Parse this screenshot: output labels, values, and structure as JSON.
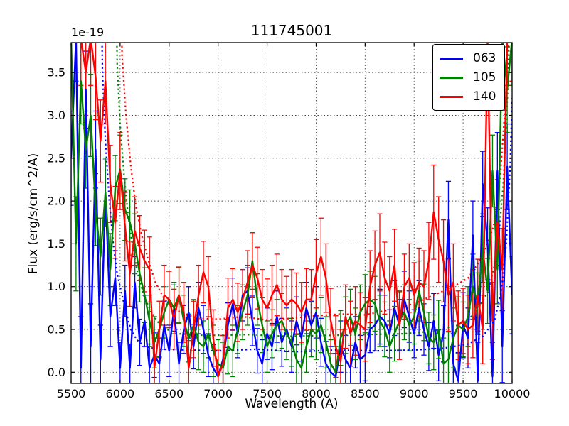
{
  "figure": {
    "title": "111745001",
    "offset_text": "1e-19",
    "background": "#ffffff"
  },
  "axes": {
    "xlabel": "Wavelength (A)",
    "ylabel": "Flux (erg/s/cm^2/A)"
  },
  "legend": {
    "position": "upper right",
    "entries": [
      {
        "label": "063",
        "color": "#0000ff"
      },
      {
        "label": "105",
        "color": "#008000"
      },
      {
        "label": "140",
        "color": "#ff0000"
      }
    ]
  },
  "chart_data": {
    "type": "line",
    "title": "111745001",
    "xlabel": "Wavelength (A)",
    "ylabel": "Flux (erg/s/cm^2/A)",
    "y_offset_factor": "1e-19",
    "xlim": [
      5500,
      10000
    ],
    "ylim": [
      -0.13,
      3.85
    ],
    "xticks": [
      5500,
      6000,
      6500,
      7000,
      7500,
      8000,
      8500,
      9000,
      9500,
      10000
    ],
    "xtick_labels": [
      "5500",
      "6000",
      "6500",
      "7000",
      "7500",
      "8000",
      "8500",
      "9000",
      "9500",
      "10000"
    ],
    "yticks": [
      0.0,
      0.5,
      1.0,
      1.5,
      2.0,
      2.5,
      3.0,
      3.5
    ],
    "ytick_labels": [
      "0.0",
      "0.5",
      "1.0",
      "1.5",
      "2.0",
      "2.5",
      "3.0",
      "3.5"
    ],
    "grid": true,
    "grid_style": "dotted",
    "legend_position": "upper right",
    "x_start": 5500,
    "x_step": 50,
    "series": [
      {
        "name": "063",
        "color": "#0000ff",
        "style": "solid",
        "values": [
          2.5,
          3.9,
          0.05,
          3.3,
          0.3,
          2.6,
          0.15,
          2.1,
          0.65,
          1.1,
          0.05,
          0.95,
          0.05,
          1.05,
          0.35,
          0.6,
          0.05,
          0.2,
          0.1,
          0.55,
          0.25,
          0.75,
          0.1,
          0.5,
          0.7,
          0.3,
          0.75,
          0.5,
          0.2,
          0.05,
          -0.05,
          0.15,
          0.55,
          0.8,
          0.45,
          0.9,
          0.95,
          0.6,
          0.25,
          0.1,
          0.45,
          0.3,
          0.65,
          0.35,
          0.5,
          0.3,
          0.6,
          0.4,
          0.75,
          0.55,
          0.7,
          0.35,
          0.1,
          0.0,
          -0.05,
          0.3,
          0.15,
          0.05,
          0.35,
          0.15,
          0.2,
          0.5,
          0.55,
          0.65,
          0.6,
          0.45,
          0.75,
          0.55,
          0.85,
          0.65,
          0.45,
          0.75,
          0.5,
          0.3,
          0.6,
          0.2,
          0.45,
          1.78,
          0.1,
          -0.1,
          0.55,
          0.4,
          1.6,
          -0.1,
          2.2,
          1.5,
          -0.05,
          2.35,
          0.3,
          2.4,
          0.9
        ],
        "errors": [
          0.55,
          0.5,
          0.6,
          0.45,
          0.5,
          0.45,
          0.4,
          0.38,
          0.35,
          0.32,
          0.3,
          0.3,
          0.28,
          0.3,
          0.27,
          0.3,
          0.28,
          0.26,
          0.3,
          0.28,
          0.3,
          0.27,
          0.25,
          0.28,
          0.3,
          0.26,
          0.3,
          0.28,
          0.25,
          0.27,
          0.3,
          0.28,
          0.26,
          0.3,
          0.28,
          0.3,
          0.27,
          0.29,
          0.26,
          0.28,
          0.3,
          0.27,
          0.3,
          0.28,
          0.26,
          0.3,
          0.28,
          0.27,
          0.3,
          0.28,
          0.3,
          0.28,
          0.26,
          0.3,
          0.27,
          0.3,
          0.28,
          0.26,
          0.3,
          0.28,
          0.3,
          0.27,
          0.3,
          0.32,
          0.3,
          0.28,
          0.32,
          0.3,
          0.33,
          0.3,
          0.28,
          0.32,
          0.3,
          0.28,
          0.32,
          0.3,
          0.33,
          0.45,
          0.35,
          0.33,
          0.38,
          0.35,
          0.4,
          0.45,
          0.38,
          0.42,
          0.4,
          0.45,
          0.42,
          0.5,
          0.45
        ]
      },
      {
        "name": "105",
        "color": "#008000",
        "style": "solid",
        "values": [
          3.9,
          1.5,
          3.4,
          2.6,
          3.0,
          1.9,
          1.35,
          2.1,
          1.2,
          2.15,
          2.37,
          1.9,
          1.75,
          1.5,
          1.15,
          0.9,
          0.6,
          0.35,
          0.5,
          0.7,
          0.85,
          0.75,
          0.9,
          0.6,
          0.4,
          0.55,
          0.35,
          0.3,
          0.45,
          0.25,
          0.1,
          0.05,
          0.3,
          0.25,
          0.5,
          0.7,
          0.9,
          1.3,
          0.85,
          0.55,
          0.3,
          0.45,
          0.55,
          0.6,
          0.45,
          0.35,
          0.15,
          0.05,
          0.3,
          0.5,
          0.45,
          0.55,
          0.35,
          0.1,
          0.0,
          0.4,
          0.55,
          0.65,
          0.45,
          0.7,
          0.8,
          0.85,
          0.8,
          0.6,
          0.5,
          0.3,
          0.45,
          0.6,
          0.7,
          0.55,
          0.65,
          0.95,
          0.7,
          0.4,
          0.35,
          0.5,
          0.1,
          0.15,
          0.4,
          0.55,
          0.5,
          0.65,
          1.0,
          0.8,
          1.45,
          0.95,
          2.35,
          1.2,
          3.9,
          3.3,
          3.9
        ],
        "errors": [
          0.5,
          0.55,
          0.5,
          0.45,
          0.48,
          0.42,
          0.45,
          0.4,
          0.42,
          0.38,
          0.4,
          0.36,
          0.38,
          0.35,
          0.33,
          0.32,
          0.3,
          0.3,
          0.32,
          0.3,
          0.33,
          0.3,
          0.32,
          0.3,
          0.28,
          0.3,
          0.32,
          0.3,
          0.28,
          0.3,
          0.28,
          0.3,
          0.32,
          0.3,
          0.28,
          0.32,
          0.35,
          0.33,
          0.3,
          0.32,
          0.3,
          0.28,
          0.3,
          0.32,
          0.3,
          0.28,
          0.3,
          0.28,
          0.3,
          0.32,
          0.3,
          0.32,
          0.3,
          0.28,
          0.3,
          0.32,
          0.33,
          0.32,
          0.3,
          0.32,
          0.34,
          0.33,
          0.32,
          0.3,
          0.32,
          0.3,
          0.32,
          0.34,
          0.32,
          0.3,
          0.32,
          0.35,
          0.33,
          0.3,
          0.32,
          0.34,
          0.3,
          0.32,
          0.35,
          0.33,
          0.32,
          0.35,
          0.38,
          0.36,
          0.4,
          0.38,
          0.42,
          0.4,
          0.45,
          0.5,
          0.55
        ]
      },
      {
        "name": "140",
        "color": "#ff0000",
        "style": "solid",
        "values": [
          null,
          null,
          3.9,
          3.5,
          3.9,
          3.45,
          2.7,
          3.4,
          2.2,
          1.75,
          2.35,
          1.7,
          1.15,
          1.65,
          1.45,
          1.3,
          1.2,
          0.05,
          0.5,
          0.9,
          0.85,
          0.62,
          0.9,
          0.7,
          0.05,
          0.5,
          0.9,
          1.17,
          1.0,
          0.4,
          -0.05,
          0.1,
          0.75,
          0.85,
          0.7,
          0.85,
          1.05,
          1.25,
          1.1,
          0.85,
          0.75,
          0.9,
          1.02,
          0.85,
          0.78,
          0.85,
          0.8,
          0.7,
          0.85,
          0.85,
          1.15,
          1.35,
          1.1,
          0.6,
          0.3,
          0.12,
          0.65,
          0.45,
          0.6,
          0.55,
          0.5,
          1.0,
          1.25,
          1.4,
          1.1,
          0.95,
          1.25,
          0.55,
          1.0,
          1.1,
          0.9,
          1.05,
          1.0,
          1.3,
          1.87,
          1.55,
          1.3,
          0.9,
          1.05,
          0.55,
          0.6,
          0.5,
          0.55,
          0.9,
          0.5,
          3.9,
          0.6,
          1.75,
          1.2,
          3.9,
          3.9
        ],
        "errors": [
          null,
          null,
          0.55,
          0.5,
          0.55,
          0.5,
          0.48,
          0.5,
          0.45,
          0.42,
          0.45,
          0.4,
          0.38,
          0.4,
          0.38,
          0.36,
          0.38,
          0.35,
          0.33,
          0.35,
          0.33,
          0.35,
          0.33,
          0.35,
          0.32,
          0.33,
          0.35,
          0.36,
          0.35,
          0.33,
          0.32,
          0.33,
          0.35,
          0.36,
          0.34,
          0.35,
          0.37,
          0.38,
          0.36,
          0.35,
          0.34,
          0.35,
          0.36,
          0.35,
          0.34,
          0.35,
          0.36,
          0.35,
          0.36,
          0.35,
          0.4,
          0.45,
          0.4,
          0.38,
          0.36,
          0.38,
          0.37,
          0.38,
          0.4,
          0.38,
          0.37,
          0.42,
          0.4,
          0.45,
          0.42,
          0.4,
          0.42,
          0.4,
          0.38,
          0.4,
          0.38,
          0.4,
          0.42,
          0.45,
          0.55,
          0.5,
          0.48,
          0.42,
          0.45,
          0.4,
          0.38,
          0.4,
          0.38,
          0.42,
          0.4,
          0.5,
          0.45,
          0.5,
          0.48,
          0.55,
          0.5
        ]
      },
      {
        "name": "063-noise",
        "color": "#0000ff",
        "style": "dotted",
        "points": [
          [
            5790,
            6.0
          ],
          [
            5820,
            3.5
          ],
          [
            5850,
            2.7
          ],
          [
            5890,
            2.0
          ],
          [
            5930,
            1.5
          ],
          [
            5970,
            1.15
          ],
          [
            6010,
            0.95
          ],
          [
            6060,
            0.7
          ],
          [
            6110,
            0.5
          ],
          [
            6170,
            0.38
          ],
          [
            6250,
            0.3
          ],
          [
            6400,
            0.27
          ],
          [
            6700,
            0.26
          ],
          [
            7000,
            0.25
          ],
          [
            7400,
            0.27
          ],
          [
            7800,
            0.24
          ],
          [
            8200,
            0.26
          ],
          [
            8600,
            0.25
          ],
          [
            9000,
            0.26
          ],
          [
            9300,
            0.28
          ],
          [
            9550,
            0.33
          ],
          [
            9700,
            0.42
          ],
          [
            9820,
            0.6
          ],
          [
            9890,
            0.95
          ],
          [
            9940,
            1.5
          ],
          [
            9980,
            2.4
          ],
          [
            10000,
            3.2
          ]
        ]
      },
      {
        "name": "105-noise",
        "color": "#008000",
        "style": "dotted",
        "points": [
          [
            5940,
            6.0
          ],
          [
            5970,
            3.6
          ],
          [
            6000,
            2.9
          ],
          [
            6040,
            2.3
          ],
          [
            6080,
            1.85
          ],
          [
            6130,
            1.45
          ],
          [
            6180,
            1.15
          ],
          [
            6240,
            0.9
          ],
          [
            6310,
            0.72
          ],
          [
            6390,
            0.58
          ],
          [
            6480,
            0.5
          ],
          [
            6600,
            0.45
          ],
          [
            6900,
            0.43
          ],
          [
            7300,
            0.44
          ],
          [
            7700,
            0.42
          ],
          [
            8100,
            0.43
          ],
          [
            8500,
            0.44
          ],
          [
            8900,
            0.45
          ],
          [
            9200,
            0.48
          ],
          [
            9450,
            0.55
          ],
          [
            9620,
            0.68
          ],
          [
            9760,
            0.95
          ],
          [
            9850,
            1.4
          ],
          [
            9910,
            2.2
          ],
          [
            9955,
            3.3
          ],
          [
            9985,
            4.5
          ]
        ]
      },
      {
        "name": "140-noise",
        "color": "#ff0000",
        "style": "dotted",
        "points": [
          [
            5990,
            6.0
          ],
          [
            6020,
            3.7
          ],
          [
            6060,
            3.0
          ],
          [
            6110,
            2.4
          ],
          [
            6160,
            1.95
          ],
          [
            6220,
            1.6
          ],
          [
            6290,
            1.3
          ],
          [
            6360,
            1.05
          ],
          [
            6440,
            0.88
          ],
          [
            6530,
            0.76
          ],
          [
            6650,
            0.68
          ],
          [
            6800,
            0.63
          ],
          [
            7000,
            0.62
          ],
          [
            7250,
            0.65
          ],
          [
            7500,
            0.61
          ],
          [
            7750,
            0.63
          ],
          [
            8000,
            0.66
          ],
          [
            8250,
            0.68
          ],
          [
            8500,
            0.67
          ],
          [
            8750,
            0.73
          ],
          [
            9000,
            0.8
          ],
          [
            9200,
            0.9
          ],
          [
            9400,
            1.0
          ],
          [
            9550,
            1.1
          ],
          [
            9700,
            1.35
          ],
          [
            9810,
            1.7
          ],
          [
            9880,
            2.3
          ],
          [
            9935,
            3.2
          ],
          [
            9975,
            4.5
          ]
        ]
      }
    ]
  }
}
